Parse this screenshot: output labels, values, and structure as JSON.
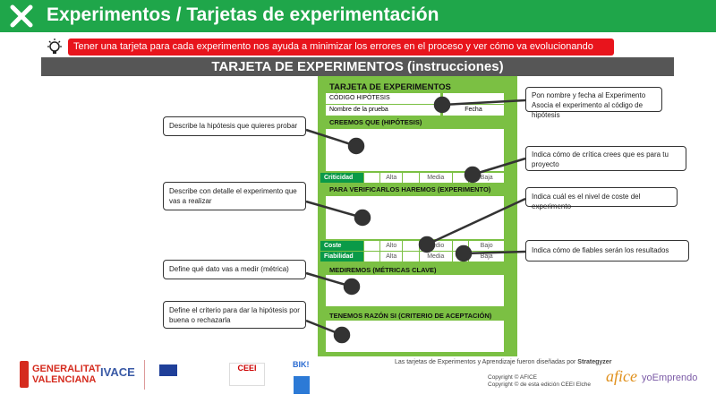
{
  "header": {
    "title": "Experimentos / Tarjetas de experimentación"
  },
  "tip": "Tener una tarjeta para cada experimento nos ayuda a minimizar los errores en el proceso y ver cómo va evolucionando",
  "section_title": "TARJETA DE EXPERIMENTOS (instrucciones)",
  "card": {
    "title": "TARJETA DE EXPERIMENTOS",
    "codigo": "CÓDIGO HIPÓTESIS",
    "nombre": "Nombre de la prueba",
    "fecha": "Fecha",
    "creemos": "CREEMOS QUE (HIPÓTESIS)",
    "criticidad": {
      "label": "Criticidad",
      "opts": [
        "Alta",
        "Media",
        "Baja"
      ]
    },
    "verificar": "PARA VERIFICARLOS HAREMOS (EXPERIMENTO)",
    "coste": {
      "label": "Coste",
      "opts": [
        "Alto",
        "Medio",
        "Bajo"
      ]
    },
    "fiabilidad": {
      "label": "Fiabilidad",
      "opts": [
        "Alta",
        "Media",
        "Baja"
      ]
    },
    "mediremos": "MEDIREMOS (MÉTRICAS CLAVE)",
    "razon": "TENEMOS RAZÓN SI (CRITERIO DE ACEPTACIÓN)"
  },
  "callouts": [
    "Pon nombre y fecha al Experimento\nAsocia el experimento al código de hipótesis",
    "Describe la hipótesis que quieres probar",
    "Indica cómo de crítica crees que es para tu proyecto",
    "Describe con detalle el experimento que vas a realizar",
    "Indica cuál es el nivel de coste del experimento",
    "Indica cómo de fiables serán los resultados",
    "Define qué dato vas a medir (métrica)",
    "Define el criterio para dar la hipótesis por buena o rechazarla"
  ],
  "footer": {
    "credit": "Las tarjetas de Experimentos y Aprendizaje fueron diseñadas por",
    "strategyzer": "Strategyzer",
    "copy1": "Copyright © AFICE",
    "copy2": "Copyright © de esta edición CEEI Elche",
    "logos": {
      "gv": "GENERALITAT VALENCIANA",
      "ivace": "IVACE",
      "ceei": "CEEI",
      "biki": "BIK!",
      "afice": "afice",
      "yoemprendo": "yoEmprendo"
    }
  },
  "colors": {
    "header": "#1fa64a",
    "tip": "#e8141c",
    "bar": "#565656",
    "card": "#7bc043",
    "label": "#0a9a48"
  }
}
